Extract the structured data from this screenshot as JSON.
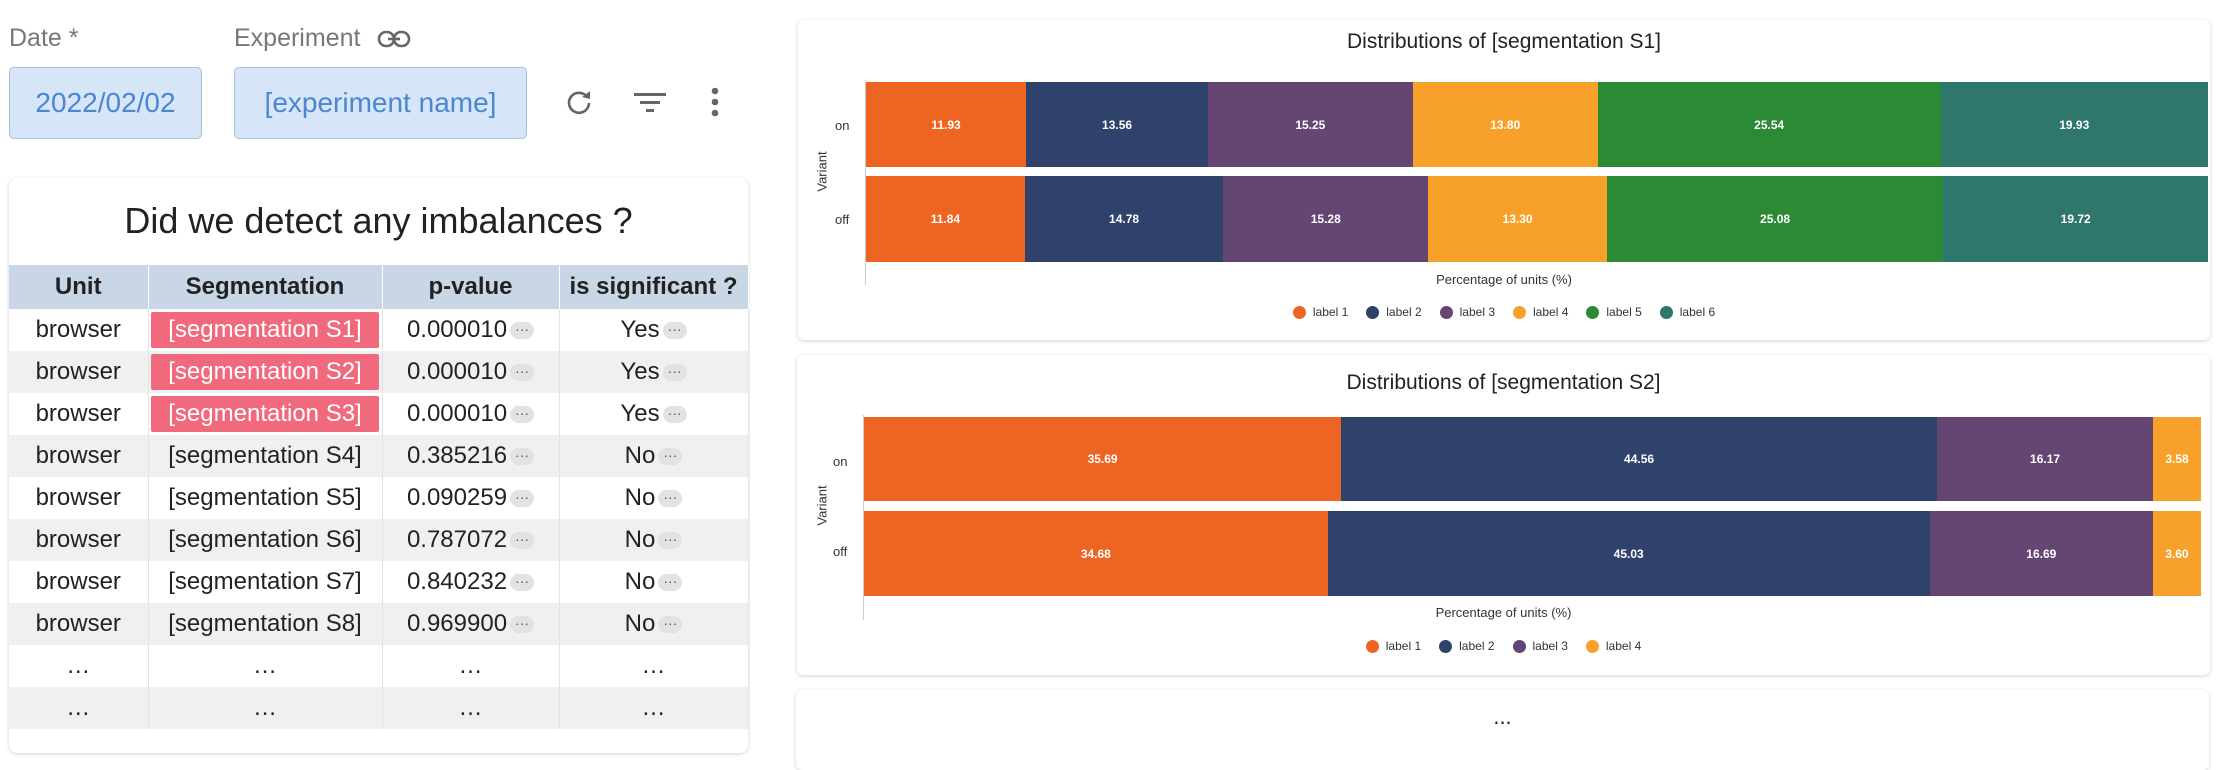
{
  "header": {
    "date_label": "Date *",
    "date_value": "2022/02/02",
    "experiment_label": "Experiment",
    "experiment_value": "[experiment name]"
  },
  "icons": {
    "link": "link-icon",
    "refresh": "refresh-icon",
    "filter": "filter-icon",
    "more": "more-vert-icon"
  },
  "table": {
    "title": "Did we detect any imbalances ?",
    "columns": [
      "Unit",
      "Segmentation",
      "p-value",
      "is significant ?"
    ],
    "more_marker": "···",
    "rows": [
      {
        "unit": "browser",
        "segmentation": "[segmentation S1]",
        "p_value": "0.000010",
        "significant": "Yes",
        "highlight": true
      },
      {
        "unit": "browser",
        "segmentation": "[segmentation S2]",
        "p_value": "0.000010",
        "significant": "Yes",
        "highlight": true
      },
      {
        "unit": "browser",
        "segmentation": "[segmentation S3]",
        "p_value": "0.000010",
        "significant": "Yes",
        "highlight": true
      },
      {
        "unit": "browser",
        "segmentation": "[segmentation S4]",
        "p_value": "0.385216",
        "significant": "No",
        "highlight": false
      },
      {
        "unit": "browser",
        "segmentation": "[segmentation S5]",
        "p_value": "0.090259",
        "significant": "No",
        "highlight": false
      },
      {
        "unit": "browser",
        "segmentation": "[segmentation S6]",
        "p_value": "0.787072",
        "significant": "No",
        "highlight": false
      },
      {
        "unit": "browser",
        "segmentation": "[segmentation S7]",
        "p_value": "0.840232",
        "significant": "No",
        "highlight": false
      },
      {
        "unit": "browser",
        "segmentation": "[segmentation S8]",
        "p_value": "0.969900",
        "significant": "No",
        "highlight": false
      },
      {
        "unit": "…",
        "segmentation": "…",
        "p_value": "…",
        "significant": "…",
        "highlight": false,
        "ellipsis": true
      },
      {
        "unit": "…",
        "segmentation": "…",
        "p_value": "…",
        "significant": "…",
        "highlight": false,
        "ellipsis": true
      }
    ]
  },
  "colors": {
    "label_1": "#ee6423",
    "label_2": "#2f426b",
    "label_3": "#654672",
    "label_4": "#f7a12b",
    "label_5": "#2b8a33",
    "label_6": "#2f766c"
  },
  "chart_data": [
    {
      "type": "bar",
      "orientation": "horizontal-stacked",
      "title": "Distributions of [segmentation S1]",
      "xlabel": "Percentage of units (%)",
      "ylabel": "Variant",
      "categories": [
        "on",
        "off"
      ],
      "series": [
        {
          "name": "label 1",
          "values": [
            11.93,
            11.84
          ]
        },
        {
          "name": "label 2",
          "values": [
            13.56,
            14.78
          ]
        },
        {
          "name": "label 3",
          "values": [
            15.25,
            15.28
          ]
        },
        {
          "name": "label 4",
          "values": [
            13.8,
            13.3
          ]
        },
        {
          "name": "label 5",
          "values": [
            25.54,
            25.08
          ]
        },
        {
          "name": "label 6",
          "values": [
            19.93,
            19.72
          ]
        }
      ],
      "xlim": [
        0,
        100
      ],
      "legend": "bottom-center"
    },
    {
      "type": "bar",
      "orientation": "horizontal-stacked",
      "title": "Distributions of [segmentation S2]",
      "xlabel": "Percentage of units (%)",
      "ylabel": "Variant",
      "categories": [
        "on",
        "off"
      ],
      "series": [
        {
          "name": "label 1",
          "values": [
            35.69,
            34.68
          ]
        },
        {
          "name": "label 2",
          "values": [
            44.56,
            45.03
          ]
        },
        {
          "name": "label 3",
          "values": [
            16.17,
            16.69
          ]
        },
        {
          "name": "label 4",
          "values": [
            3.58,
            3.6
          ]
        }
      ],
      "xlim": [
        0,
        100
      ],
      "legend": "bottom-center"
    }
  ],
  "third_panel_text": "..."
}
